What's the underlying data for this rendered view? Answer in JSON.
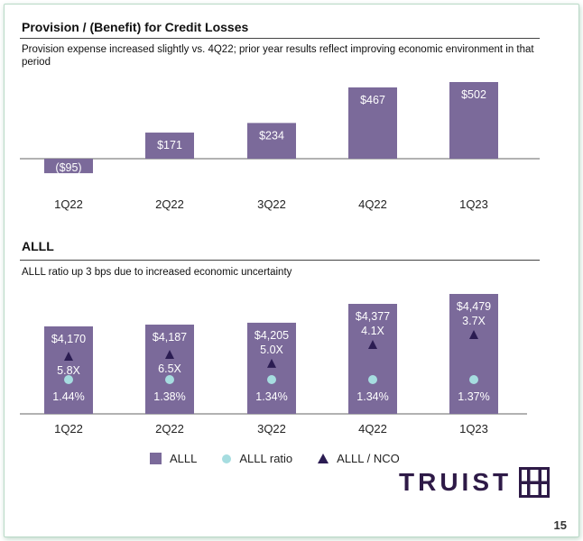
{
  "colors": {
    "bar": "#7b6a9a",
    "bar_label": "#ffffff",
    "ratio_dot": "#a6dde0",
    "nco_triangle": "#2b1c52",
    "axis": "#666666",
    "brand": "#2e1a47"
  },
  "provision": {
    "title": "Provision / (Benefit) for Credit Losses",
    "subtitle": "Provision expense increased slightly vs. 4Q22; prior year results reflect improving economic environment in that period"
  },
  "alll": {
    "title": "ALLL",
    "subtitle": "ALLL ratio up 3 bps due to increased economic uncertainty"
  },
  "legend": {
    "alll": "ALLL",
    "ratio": "ALLL ratio",
    "nco": "ALLL / NCO"
  },
  "brand": {
    "name": "TRUIST",
    "mark_icon": "truist-h-mark-icon"
  },
  "page_number": "15",
  "chart_data": [
    {
      "type": "bar",
      "title": "Provision / (Benefit) for Credit Losses",
      "categories": [
        "1Q22",
        "2Q22",
        "3Q22",
        "4Q22",
        "1Q23"
      ],
      "values": [
        -95,
        171,
        234,
        467,
        502
      ],
      "labels": [
        "($95)",
        "$171",
        "$234",
        "$467",
        "$502"
      ],
      "units": "$M",
      "ylim": [
        -120,
        560
      ]
    },
    {
      "type": "bar",
      "title": "ALLL",
      "categories": [
        "1Q22",
        "2Q22",
        "3Q22",
        "4Q22",
        "1Q23"
      ],
      "series": [
        {
          "name": "ALLL",
          "values": [
            4170,
            4187,
            4205,
            4377,
            4479
          ],
          "labels": [
            "$4,170",
            "$4,187",
            "$4,205",
            "$4,377",
            "$4,479"
          ]
        },
        {
          "name": "ALLL ratio",
          "values": [
            1.44,
            1.38,
            1.34,
            1.34,
            1.37
          ],
          "labels": [
            "1.44%",
            "1.38%",
            "1.34%",
            "1.34%",
            "1.37%"
          ]
        },
        {
          "name": "ALLL / NCO",
          "values": [
            5.8,
            6.5,
            5.0,
            4.1,
            3.7
          ],
          "labels": [
            "5.8X",
            "6.5X",
            "5.0X",
            "4.1X",
            "3.7X"
          ]
        }
      ],
      "ylim": [
        0,
        4600
      ]
    }
  ]
}
